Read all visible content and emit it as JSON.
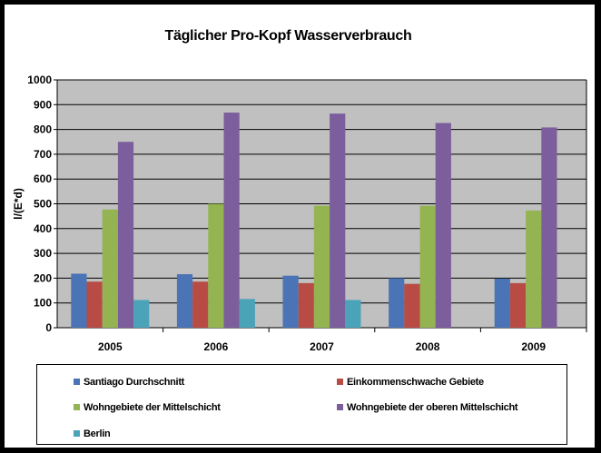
{
  "chart_data": {
    "type": "bar",
    "title": "Täglicher Pro-Kopf Wasserverbrauch",
    "ylabel": "l/(E*d)",
    "xlabel": "",
    "ylim": [
      0,
      1000
    ],
    "yticks": [
      0,
      100,
      200,
      300,
      400,
      500,
      600,
      700,
      800,
      900,
      1000
    ],
    "grid": true,
    "legend_position": "bottom",
    "categories": [
      "2005",
      "2006",
      "2007",
      "2008",
      "2009"
    ],
    "series": [
      {
        "name": "Santiago Durchschnitt",
        "color": "#4a74b5",
        "values": [
          218,
          216,
          210,
          200,
          198
        ]
      },
      {
        "name": "Einkommenschwache Gebiete",
        "color": "#b84c45",
        "values": [
          186,
          186,
          180,
          177,
          180
        ]
      },
      {
        "name": "Wohngebiete der Mittelschicht",
        "color": "#93b450",
        "values": [
          477,
          500,
          492,
          492,
          473
        ]
      },
      {
        "name": "Wohngebiete der oberen Mittelschicht",
        "color": "#7b5e9b",
        "values": [
          750,
          868,
          864,
          826,
          808
        ]
      },
      {
        "name": "Berlin",
        "color": "#4ba3b9",
        "values": [
          112,
          116,
          112,
          null,
          null
        ]
      }
    ],
    "plot_background": "#c0c0c0"
  }
}
